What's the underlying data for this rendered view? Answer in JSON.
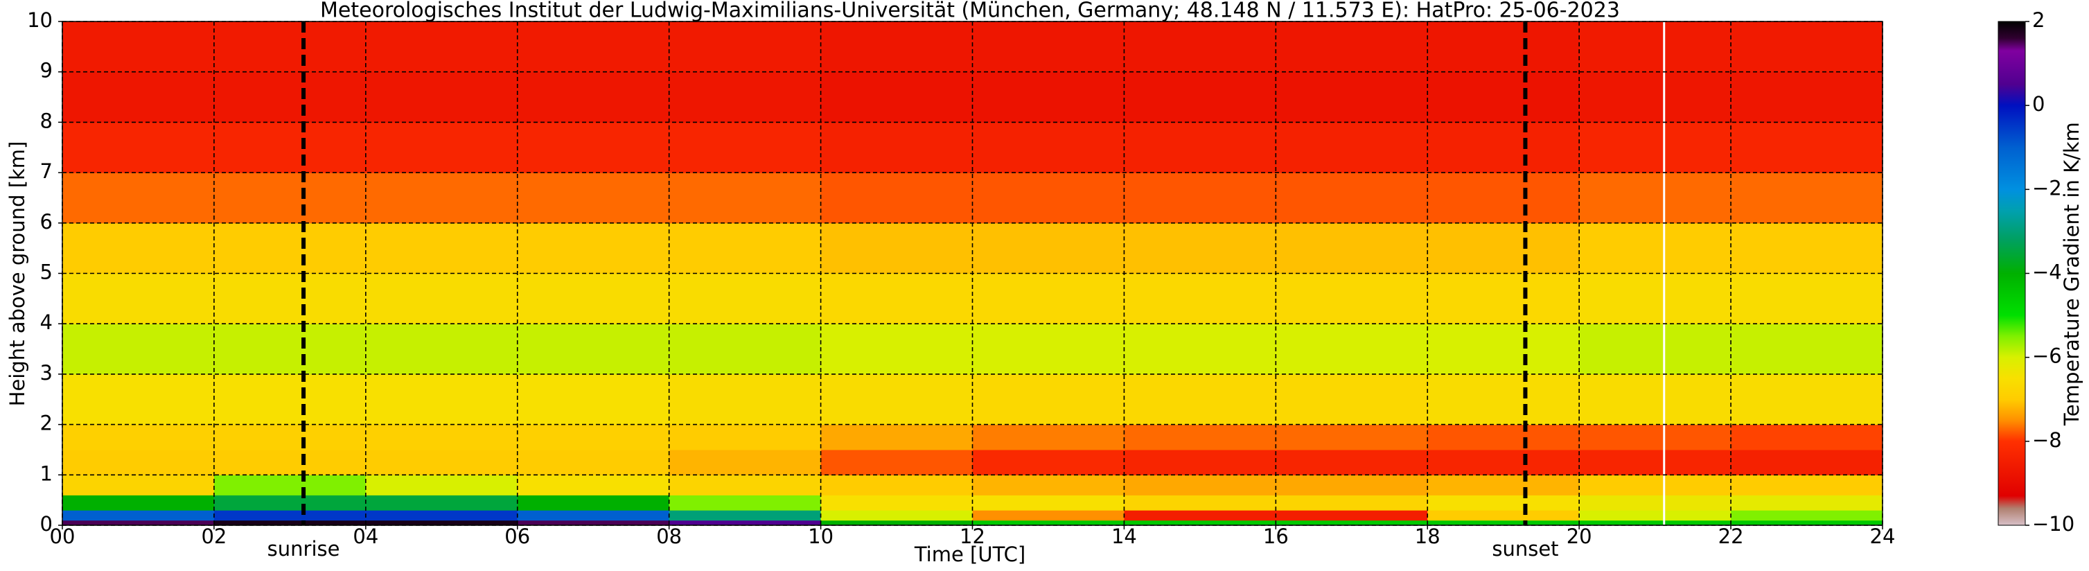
{
  "chart_data": {
    "type": "heatmap",
    "title": "Meteorologisches Institut der Ludwig-Maximilians-Universität (München, Germany; 48.148 N / 11.573 E):    HatPro: 25-06-2023",
    "x_label": "Time [UTC]",
    "y_label": "Height above ground [km]",
    "colorbar_label": "Temperature Gradient in K/km",
    "x_edges": [
      0,
      2,
      4,
      6,
      8,
      10,
      12,
      14,
      16,
      18,
      20,
      22,
      24
    ],
    "y_edges": [
      0,
      0.1,
      0.3,
      0.6,
      1,
      1.5,
      2,
      3,
      4,
      5,
      6,
      7,
      8,
      9,
      10
    ],
    "z": [
      [
        1.5,
        1.8,
        1.8,
        1.5,
        0.5,
        -4,
        -4.5,
        -4.5,
        -4.5,
        -4.5,
        -4.5,
        -4.5
      ],
      [
        -1,
        -0.5,
        -0.5,
        -1,
        -3,
        -6,
        -7.5,
        -8.5,
        -8.5,
        -7,
        -6,
        -5.5
      ],
      [
        -4,
        -3.5,
        -3.5,
        -4,
        -5.5,
        -6.5,
        -6.5,
        -6.8,
        -6.8,
        -6.5,
        -6.3,
        -6.2
      ],
      [
        -6.8,
        -5.5,
        -6,
        -6.5,
        -6.8,
        -7,
        -7.2,
        -7.3,
        -7.3,
        -7.2,
        -7,
        -7
      ],
      [
        -7,
        -7,
        -7,
        -7,
        -7.2,
        -7.8,
        -8.2,
        -8.3,
        -8.3,
        -8.3,
        -8.3,
        -8.4
      ],
      [
        -6.9,
        -6.9,
        -6.9,
        -6.9,
        -7,
        -7.3,
        -7.6,
        -7.7,
        -7.7,
        -7.8,
        -7.8,
        -7.9
      ],
      [
        -6.5,
        -6.5,
        -6.5,
        -6.5,
        -6.6,
        -6.6,
        -6.7,
        -6.7,
        -6.7,
        -6.6,
        -6.6,
        -6.6
      ],
      [
        -5.9,
        -5.9,
        -5.9,
        -5.9,
        -5.9,
        -6,
        -6,
        -6,
        -6,
        -6,
        -5.9,
        -5.9
      ],
      [
        -6.6,
        -6.6,
        -6.6,
        -6.6,
        -6.6,
        -6.7,
        -6.7,
        -6.7,
        -6.7,
        -6.7,
        -6.6,
        -6.6
      ],
      [
        -7,
        -7,
        -7,
        -7,
        -7,
        -7.1,
        -7.1,
        -7.1,
        -7.1,
        -7.1,
        -7,
        -7
      ],
      [
        -7.7,
        -7.7,
        -7.7,
        -7.7,
        -7.7,
        -7.8,
        -7.8,
        -7.8,
        -7.8,
        -7.8,
        -7.7,
        -7.7
      ],
      [
        -8.3,
        -8.3,
        -8.3,
        -8.3,
        -8.3,
        -8.4,
        -8.4,
        -8.4,
        -8.4,
        -8.4,
        -8.3,
        -8.3
      ],
      [
        -8.7,
        -8.7,
        -8.7,
        -8.7,
        -8.7,
        -8.8,
        -8.8,
        -8.8,
        -8.8,
        -8.8,
        -8.7,
        -8.7
      ],
      [
        -8.6,
        -8.6,
        -8.6,
        -8.6,
        -8.6,
        -8.7,
        -8.7,
        -8.7,
        -8.7,
        -8.7,
        -8.6,
        -8.6
      ]
    ],
    "xlim": [
      0,
      24
    ],
    "xticks": [
      {
        "value": 0,
        "label": "00"
      },
      {
        "value": 2,
        "label": "02"
      },
      {
        "value": 4,
        "label": "04"
      },
      {
        "value": 6,
        "label": "06"
      },
      {
        "value": 8,
        "label": "08"
      },
      10,
      12,
      14,
      16,
      18,
      20,
      22,
      24
    ],
    "ylim": [
      0,
      10
    ],
    "yticks": [
      0,
      1,
      2,
      3,
      4,
      5,
      6,
      7,
      8,
      9,
      10
    ],
    "clim": [
      -10,
      2
    ],
    "cticks": [
      {
        "value": -10,
        "label": "−10"
      },
      {
        "value": -8,
        "label": "−8"
      },
      {
        "value": -6,
        "label": "−6"
      },
      {
        "value": -4,
        "label": "−4"
      },
      {
        "value": -2,
        "label": "−2"
      },
      0,
      2
    ],
    "colormap": [
      [
        -10,
        "#d8c0c8"
      ],
      [
        -9.6,
        "#b08070"
      ],
      [
        -9.3,
        "#e00000"
      ],
      [
        -8,
        "#ff3000"
      ],
      [
        -7.5,
        "#ff9000"
      ],
      [
        -7,
        "#ffcc00"
      ],
      [
        -6.5,
        "#f8e000"
      ],
      [
        -6,
        "#d8f000"
      ],
      [
        -5.5,
        "#80f000"
      ],
      [
        -5,
        "#00e000"
      ],
      [
        -4,
        "#00b000"
      ],
      [
        -3.2,
        "#00a060"
      ],
      [
        -2.5,
        "#00a0b0"
      ],
      [
        -2,
        "#0090e0"
      ],
      [
        -1,
        "#0060d0"
      ],
      [
        0,
        "#0010c0"
      ],
      [
        0.5,
        "#500090"
      ],
      [
        1.3,
        "#8000a0"
      ],
      [
        1.6,
        "#300030"
      ],
      [
        2,
        "#000000"
      ]
    ],
    "grid": true,
    "annotations": [
      {
        "label": "sunrise",
        "x": 3.18
      },
      {
        "label": "sunset",
        "x": 19.29
      }
    ],
    "gaps": [
      21.12
    ]
  }
}
